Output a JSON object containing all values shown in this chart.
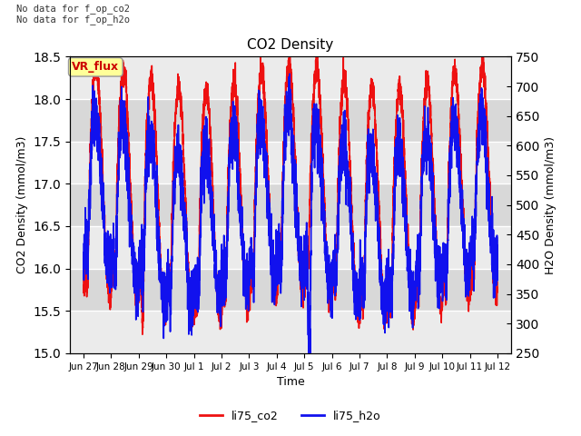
{
  "title": "CO2 Density",
  "xlabel": "Time",
  "ylabel_left": "CO2 Density (mmol/m3)",
  "ylabel_right": "H2O Density (mmol/m3)",
  "top_text": "No data for f_op_co2\nNo data for f_op_h2o",
  "badge_text": "VR_flux",
  "badge_color": "#ffff99",
  "badge_text_color": "#cc0000",
  "ylim_left": [
    15.0,
    18.5
  ],
  "ylim_right": [
    250,
    750
  ],
  "xtick_labels": [
    "Jun 27",
    "Jun 28",
    "Jun 29",
    "Jun 30",
    "Jul 1",
    "Jul 2",
    "Jul 3",
    "Jul 4",
    "Jul 5",
    "Jul 6",
    "Jul 7",
    "Jul 8",
    "Jul 9",
    "Jul 10",
    "Jul 11",
    "Jul 12"
  ],
  "xtick_positions": [
    0,
    1,
    2,
    3,
    4,
    5,
    6,
    7,
    8,
    9,
    10,
    11,
    12,
    13,
    14,
    15
  ],
  "yticks_left": [
    15.0,
    15.5,
    16.0,
    16.5,
    17.0,
    17.5,
    18.0,
    18.5
  ],
  "yticks_right": [
    250,
    300,
    350,
    400,
    450,
    500,
    550,
    600,
    650,
    700,
    750
  ],
  "line_co2_color": "#ee1111",
  "line_h2o_color": "#1111ee",
  "line_width": 1.2,
  "legend_co2": "li75_co2",
  "legend_h2o": "li75_h2o",
  "background_color": "#ffffff",
  "plot_bg_color": "#e0e0e0",
  "grid_color": "#ffffff",
  "grid_linewidth": 1.0,
  "band_color_light": "#ebebeb",
  "band_color_dark": "#d8d8d8"
}
